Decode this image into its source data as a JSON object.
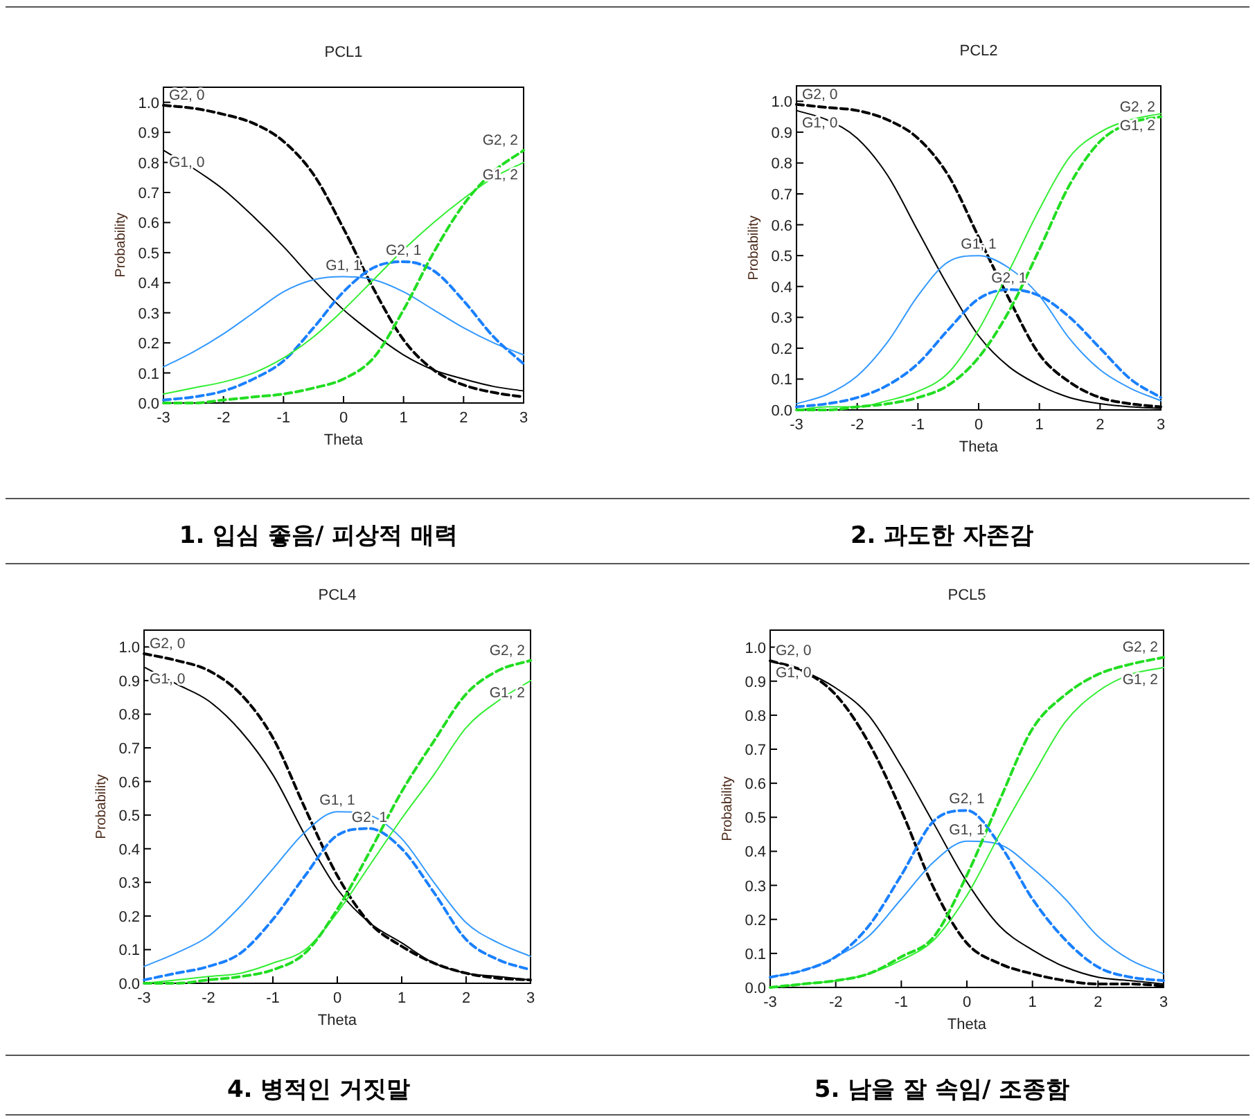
{
  "chart_data": [
    {
      "type": "line",
      "title": "PCL1",
      "xlabel": "Theta",
      "ylabel": "Probability",
      "xlim": [
        -3,
        3
      ],
      "ylim": [
        0,
        1.05
      ],
      "xticks": [
        -3,
        -2,
        -1,
        0,
        1,
        2,
        3
      ],
      "yticks": [
        {
          "value": 0,
          "label": "0.0"
        },
        {
          "value": 0.1,
          "label": "0.1"
        },
        {
          "value": 0.2,
          "label": "0.2"
        },
        {
          "value": 0.3,
          "label": "0.3"
        },
        {
          "value": 0.4,
          "label": "0.4"
        },
        {
          "value": 0.5,
          "label": "0.5"
        },
        {
          "value": 0.6,
          "label": "0.6"
        },
        {
          "value": 0.7,
          "label": "0.7"
        },
        {
          "value": 0.8,
          "label": "0.8"
        },
        {
          "value": 0.9,
          "label": "0.9"
        },
        {
          "value": 1,
          "label": "1.0"
        }
      ],
      "x": [
        -3,
        -2.5,
        -2,
        -1.5,
        -1,
        -0.5,
        0,
        0.5,
        1,
        1.5,
        2,
        2.5,
        3
      ],
      "series": [
        {
          "name": "G1, 0",
          "color": "#000000",
          "line_style": "solid",
          "values": [
            0.84,
            0.78,
            0.71,
            0.62,
            0.52,
            0.41,
            0.31,
            0.23,
            0.16,
            0.11,
            0.08,
            0.055,
            0.04
          ]
        },
        {
          "name": "G2, 0",
          "color": "#000000",
          "line_style": "dashed",
          "values": [
            0.99,
            0.98,
            0.96,
            0.93,
            0.87,
            0.76,
            0.58,
            0.38,
            0.21,
            0.11,
            0.06,
            0.035,
            0.02
          ]
        },
        {
          "name": "G1, 1",
          "color": "#3399ff",
          "line_style": "solid",
          "values": [
            0.12,
            0.17,
            0.23,
            0.3,
            0.37,
            0.41,
            0.42,
            0.41,
            0.37,
            0.31,
            0.25,
            0.2,
            0.16
          ]
        },
        {
          "name": "G2, 1",
          "color": "#1a80ff",
          "line_style": "dashed",
          "values": [
            0.01,
            0.02,
            0.04,
            0.08,
            0.14,
            0.25,
            0.37,
            0.45,
            0.47,
            0.44,
            0.34,
            0.22,
            0.13
          ]
        },
        {
          "name": "G1, 2",
          "color": "#33ee33",
          "line_style": "solid",
          "values": [
            0.03,
            0.05,
            0.07,
            0.1,
            0.15,
            0.22,
            0.31,
            0.41,
            0.51,
            0.6,
            0.68,
            0.75,
            0.8
          ]
        },
        {
          "name": "G2, 2",
          "color": "#22dd22",
          "line_style": "dashed",
          "values": [
            0,
            0,
            0.01,
            0.02,
            0.03,
            0.05,
            0.08,
            0.15,
            0.31,
            0.5,
            0.66,
            0.77,
            0.84
          ]
        }
      ],
      "annotations": [
        "1. 입심 좋음/ 피상적 매력"
      ]
    },
    {
      "type": "line",
      "title": "PCL2",
      "xlabel": "Theta",
      "ylabel": "Probability",
      "xlim": [
        -3,
        3
      ],
      "ylim": [
        0,
        1.05
      ],
      "xticks": [
        -3,
        -2,
        -1,
        0,
        1,
        2,
        3
      ],
      "yticks": [
        {
          "value": 0,
          "label": "0.0"
        },
        {
          "value": 0.1,
          "label": "0.1"
        },
        {
          "value": 0.2,
          "label": "0.2"
        },
        {
          "value": 0.3,
          "label": "0.3"
        },
        {
          "value": 0.4,
          "label": "0.4"
        },
        {
          "value": 0.5,
          "label": "0.5"
        },
        {
          "value": 0.6,
          "label": "0.6"
        },
        {
          "value": 0.7,
          "label": "0.7"
        },
        {
          "value": 0.8,
          "label": "0.8"
        },
        {
          "value": 0.9,
          "label": "0.9"
        },
        {
          "value": 1,
          "label": "1.0"
        }
      ],
      "x": [
        -3,
        -2.5,
        -2,
        -1.5,
        -1,
        -0.5,
        0,
        0.5,
        1,
        1.5,
        2,
        2.5,
        3
      ],
      "series": [
        {
          "name": "G1, 0",
          "color": "#000000",
          "line_style": "solid",
          "values": [
            0.97,
            0.94,
            0.88,
            0.76,
            0.58,
            0.4,
            0.24,
            0.14,
            0.08,
            0.04,
            0.02,
            0.01,
            0.005
          ]
        },
        {
          "name": "G2, 0",
          "color": "#000000",
          "line_style": "dashed",
          "values": [
            0.99,
            0.98,
            0.97,
            0.94,
            0.88,
            0.76,
            0.56,
            0.36,
            0.18,
            0.09,
            0.04,
            0.02,
            0.01
          ]
        },
        {
          "name": "G1, 1",
          "color": "#3399ff",
          "line_style": "solid",
          "values": [
            0.02,
            0.05,
            0.11,
            0.22,
            0.37,
            0.48,
            0.5,
            0.46,
            0.37,
            0.23,
            0.13,
            0.07,
            0.03
          ]
        },
        {
          "name": "G2, 1",
          "color": "#1a80ff",
          "line_style": "dashed",
          "values": [
            0.01,
            0.02,
            0.04,
            0.08,
            0.15,
            0.26,
            0.36,
            0.39,
            0.37,
            0.3,
            0.2,
            0.1,
            0.04
          ]
        },
        {
          "name": "G1, 2",
          "color": "#33ee33",
          "line_style": "solid",
          "values": [
            0,
            0.01,
            0.01,
            0.03,
            0.06,
            0.12,
            0.26,
            0.45,
            0.65,
            0.82,
            0.9,
            0.94,
            0.96
          ]
        },
        {
          "name": "G2, 2",
          "color": "#22dd22",
          "line_style": "dashed",
          "values": [
            0,
            0,
            0.01,
            0.02,
            0.04,
            0.08,
            0.17,
            0.32,
            0.52,
            0.73,
            0.87,
            0.93,
            0.95
          ]
        }
      ],
      "annotations": [
        "2. 과도한 자존감"
      ]
    },
    {
      "type": "line",
      "title": "PCL4",
      "xlabel": "Theta",
      "ylabel": "Probability",
      "xlim": [
        -3,
        3
      ],
      "ylim": [
        0,
        1.05
      ],
      "xticks": [
        -3,
        -2,
        -1,
        0,
        1,
        2,
        3
      ],
      "yticks": [
        {
          "value": 0,
          "label": "0.0"
        },
        {
          "value": 0.1,
          "label": "0.1"
        },
        {
          "value": 0.2,
          "label": "0.2"
        },
        {
          "value": 0.3,
          "label": "0.3"
        },
        {
          "value": 0.4,
          "label": "0.4"
        },
        {
          "value": 0.5,
          "label": "0.5"
        },
        {
          "value": 0.6,
          "label": "0.6"
        },
        {
          "value": 0.7,
          "label": "0.7"
        },
        {
          "value": 0.8,
          "label": "0.8"
        },
        {
          "value": 0.9,
          "label": "0.9"
        },
        {
          "value": 1,
          "label": "1.0"
        }
      ],
      "x": [
        -3,
        -2.5,
        -2,
        -1.5,
        -1,
        -0.5,
        0,
        0.5,
        1,
        1.5,
        2,
        2.5,
        3
      ],
      "series": [
        {
          "name": "G1, 0",
          "color": "#000000",
          "line_style": "solid",
          "values": [
            0.94,
            0.89,
            0.84,
            0.75,
            0.62,
            0.44,
            0.28,
            0.18,
            0.12,
            0.06,
            0.03,
            0.02,
            0.01
          ]
        },
        {
          "name": "G2, 0",
          "color": "#000000",
          "line_style": "dashed",
          "values": [
            0.98,
            0.96,
            0.93,
            0.86,
            0.73,
            0.52,
            0.32,
            0.18,
            0.11,
            0.06,
            0.03,
            0.015,
            0.01
          ]
        },
        {
          "name": "G1, 1",
          "color": "#3399ff",
          "line_style": "solid",
          "values": [
            0.05,
            0.09,
            0.14,
            0.23,
            0.34,
            0.45,
            0.51,
            0.5,
            0.43,
            0.3,
            0.18,
            0.12,
            0.08
          ]
        },
        {
          "name": "G2, 1",
          "color": "#1a80ff",
          "line_style": "dashed",
          "values": [
            0.01,
            0.03,
            0.05,
            0.09,
            0.19,
            0.32,
            0.44,
            0.46,
            0.4,
            0.27,
            0.13,
            0.07,
            0.04
          ]
        },
        {
          "name": "G1, 2",
          "color": "#33ee33",
          "line_style": "solid",
          "values": [
            0,
            0.01,
            0.02,
            0.03,
            0.06,
            0.1,
            0.21,
            0.35,
            0.49,
            0.62,
            0.76,
            0.84,
            0.9
          ]
        },
        {
          "name": "G2, 2",
          "color": "#22dd22",
          "line_style": "dashed",
          "values": [
            0,
            0,
            0.01,
            0.02,
            0.04,
            0.09,
            0.22,
            0.39,
            0.57,
            0.72,
            0.86,
            0.93,
            0.96
          ]
        }
      ],
      "annotations": [
        "4. 병적인 거짓말"
      ]
    },
    {
      "type": "line",
      "title": "PCL5",
      "xlabel": "Theta",
      "ylabel": "Probability",
      "xlim": [
        -3,
        3
      ],
      "ylim": [
        0,
        1.05
      ],
      "xticks": [
        -3,
        -2,
        -1,
        0,
        1,
        2,
        3
      ],
      "yticks": [
        {
          "value": 0,
          "label": "0.0"
        },
        {
          "value": 0.1,
          "label": "0.1"
        },
        {
          "value": 0.2,
          "label": "0.2"
        },
        {
          "value": 0.3,
          "label": "0.3"
        },
        {
          "value": 0.4,
          "label": "0.4"
        },
        {
          "value": 0.5,
          "label": "0.5"
        },
        {
          "value": 0.6,
          "label": "0.6"
        },
        {
          "value": 0.7,
          "label": "0.7"
        },
        {
          "value": 0.8,
          "label": "0.8"
        },
        {
          "value": 0.9,
          "label": "0.9"
        },
        {
          "value": 1,
          "label": "1.0"
        }
      ],
      "x": [
        -3,
        -2.5,
        -2,
        -1.5,
        -1,
        -0.5,
        0,
        0.5,
        1,
        1.5,
        2,
        2.5,
        3
      ],
      "series": [
        {
          "name": "G1, 0",
          "color": "#000000",
          "line_style": "solid",
          "values": [
            0.96,
            0.93,
            0.88,
            0.8,
            0.65,
            0.48,
            0.31,
            0.18,
            0.11,
            0.06,
            0.03,
            0.02,
            0.01
          ]
        },
        {
          "name": "G2, 0",
          "color": "#000000",
          "line_style": "dashed",
          "values": [
            0.96,
            0.93,
            0.86,
            0.72,
            0.52,
            0.29,
            0.13,
            0.07,
            0.04,
            0.02,
            0.01,
            0.01,
            0.005
          ]
        },
        {
          "name": "G1, 1",
          "color": "#3399ff",
          "line_style": "solid",
          "values": [
            0.03,
            0.05,
            0.09,
            0.15,
            0.26,
            0.37,
            0.43,
            0.42,
            0.35,
            0.26,
            0.15,
            0.08,
            0.04
          ]
        },
        {
          "name": "G2, 1",
          "color": "#1a80ff",
          "line_style": "dashed",
          "values": [
            0.03,
            0.05,
            0.09,
            0.18,
            0.33,
            0.49,
            0.52,
            0.42,
            0.26,
            0.14,
            0.06,
            0.03,
            0.02
          ]
        },
        {
          "name": "G1, 2",
          "color": "#33ee33",
          "line_style": "solid",
          "values": [
            0,
            0.01,
            0.02,
            0.04,
            0.08,
            0.14,
            0.27,
            0.45,
            0.62,
            0.78,
            0.87,
            0.92,
            0.94
          ]
        },
        {
          "name": "G2, 2",
          "color": "#22dd22",
          "line_style": "dashed",
          "values": [
            0,
            0.01,
            0.02,
            0.04,
            0.09,
            0.15,
            0.33,
            0.55,
            0.76,
            0.86,
            0.92,
            0.95,
            0.97
          ]
        }
      ],
      "annotations": [
        "5. 남을 잘 속임/ 조종함"
      ]
    }
  ]
}
